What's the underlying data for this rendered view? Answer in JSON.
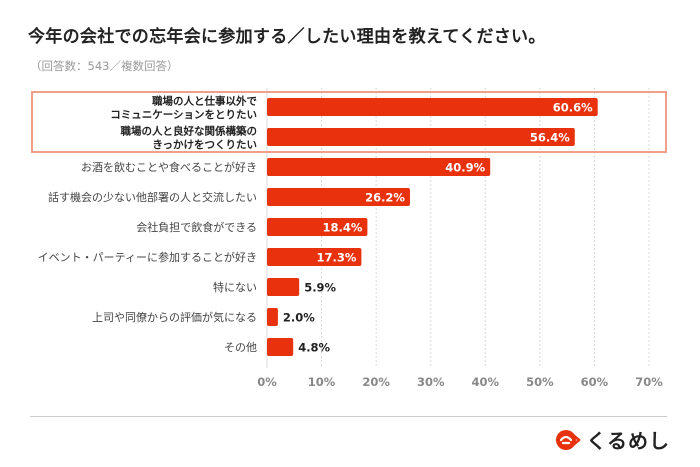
{
  "header": {
    "title": "今年の会社での忘年会に参加する／したい理由を教えてください。",
    "subtitle": "（回答数：543／複数回答）"
  },
  "brand": {
    "name": "くるめし",
    "accent_color": "#e8320e"
  },
  "chart_data": {
    "type": "bar",
    "orientation": "horizontal",
    "title": "今年の会社での忘年会に参加する／したい理由を教えてください。",
    "subtitle": "（回答数：543／複数回答）",
    "categories": [
      [
        "職場の人と仕事以外で",
        "コミュニケーションをとりたい"
      ],
      [
        "職場の人と良好な関係構築の",
        "きっかけをつくりたい"
      ],
      [
        "お酒を飲むことや食べることが好き"
      ],
      [
        "話す機会の少ない他部署の人と交流したい"
      ],
      [
        "会社負担で飲食ができる"
      ],
      [
        "イベント・パーティーに参加することが好き"
      ],
      [
        "特にない"
      ],
      [
        "上司や同僚からの評価が気になる"
      ],
      [
        "その他"
      ]
    ],
    "values": [
      60.6,
      56.4,
      40.9,
      26.2,
      18.4,
      17.3,
      5.9,
      2.0,
      4.8
    ],
    "value_labels": [
      "60.6%",
      "56.4%",
      "40.9%",
      "26.2%",
      "18.4%",
      "17.3%",
      "5.9%",
      "2.0%",
      "4.8%"
    ],
    "xlim": [
      0,
      70
    ],
    "xticks": [
      0,
      10,
      20,
      30,
      40,
      50,
      60,
      70
    ],
    "xtick_labels": [
      "0%",
      "10%",
      "20%",
      "30%",
      "40%",
      "50%",
      "60%",
      "70%"
    ],
    "highlighted_indices": [
      0,
      1
    ],
    "bar_color": "#e8320e",
    "highlight_color": "#f0a08a",
    "grid": "vertical-dashed"
  }
}
